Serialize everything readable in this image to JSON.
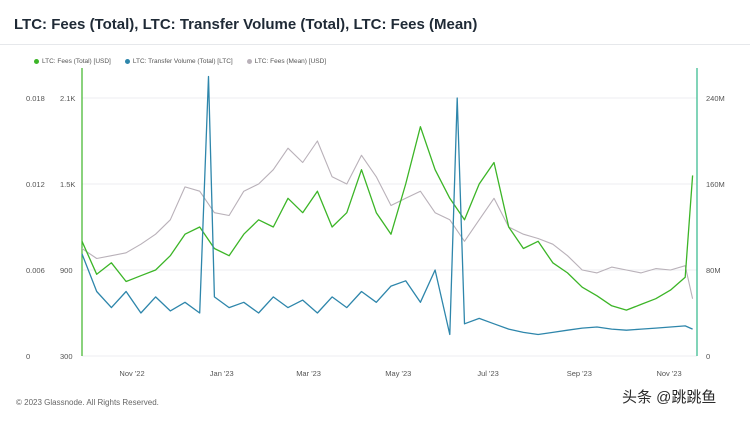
{
  "title": "LTC: Fees (Total), LTC: Transfer Volume (Total), LTC: Fees (Mean)",
  "footer": "© 2023 Glassnode. All Rights Reserved.",
  "watermark": "头条 @跳跳鱼",
  "colors": {
    "fees_total": "#3cb527",
    "transfer_volume": "#2e86ab",
    "fees_mean": "#b9b1b9",
    "axis_right": "#2eb88a"
  },
  "chart_data": {
    "type": "line",
    "x_tick_labels": [
      "Nov '22",
      "Jan '23",
      "Mar '23",
      "May '23",
      "Jul '23",
      "Sep '23",
      "Nov '23"
    ],
    "x_range": [
      "2022-09-28",
      "2023-11-20"
    ],
    "left_axis_1": {
      "ticks": [
        "0",
        "0.006",
        "0.012",
        "0.018"
      ],
      "range": [
        0,
        0.018
      ]
    },
    "left_axis_2": {
      "ticks": [
        "300",
        "900",
        "1.5K",
        "2.1K"
      ],
      "range": [
        300,
        2100
      ]
    },
    "right_axis": {
      "ticks": [
        "0",
        "80M",
        "160M",
        "240M"
      ],
      "range": [
        0,
        240000000
      ]
    },
    "grid": true,
    "legend_position": "top-left",
    "series": [
      {
        "name": "LTC: Fees (Total) [USD]",
        "axis": "left_axis_2",
        "points": [
          [
            "2022-09-28",
            1100
          ],
          [
            "2022-10-08",
            870
          ],
          [
            "2022-10-18",
            950
          ],
          [
            "2022-10-28",
            820
          ],
          [
            "2022-11-07",
            860
          ],
          [
            "2022-11-17",
            900
          ],
          [
            "2022-11-27",
            1000
          ],
          [
            "2022-12-07",
            1150
          ],
          [
            "2022-12-17",
            1200
          ],
          [
            "2022-12-27",
            1050
          ],
          [
            "2023-01-06",
            1000
          ],
          [
            "2023-01-16",
            1150
          ],
          [
            "2023-01-26",
            1250
          ],
          [
            "2023-02-05",
            1200
          ],
          [
            "2023-02-15",
            1400
          ],
          [
            "2023-02-25",
            1300
          ],
          [
            "2023-03-07",
            1450
          ],
          [
            "2023-03-17",
            1200
          ],
          [
            "2023-03-27",
            1300
          ],
          [
            "2023-04-06",
            1600
          ],
          [
            "2023-04-16",
            1300
          ],
          [
            "2023-04-26",
            1150
          ],
          [
            "2023-05-06",
            1500
          ],
          [
            "2023-05-16",
            1900
          ],
          [
            "2023-05-26",
            1600
          ],
          [
            "2023-06-05",
            1400
          ],
          [
            "2023-06-15",
            1250
          ],
          [
            "2023-06-25",
            1500
          ],
          [
            "2023-07-05",
            1650
          ],
          [
            "2023-07-15",
            1200
          ],
          [
            "2023-07-25",
            1050
          ],
          [
            "2023-08-04",
            1100
          ],
          [
            "2023-08-14",
            950
          ],
          [
            "2023-08-24",
            880
          ],
          [
            "2023-09-03",
            780
          ],
          [
            "2023-09-13",
            720
          ],
          [
            "2023-09-23",
            650
          ],
          [
            "2023-10-03",
            620
          ],
          [
            "2023-10-13",
            660
          ],
          [
            "2023-10-23",
            700
          ],
          [
            "2023-11-02",
            760
          ],
          [
            "2023-11-12",
            850
          ],
          [
            "2023-11-17",
            1560
          ]
        ]
      },
      {
        "name": "LTC: Transfer Volume (Total) [LTC]",
        "axis": "right_axis",
        "points": [
          [
            "2022-09-28",
            95000000
          ],
          [
            "2022-10-08",
            60000000
          ],
          [
            "2022-10-18",
            45000000
          ],
          [
            "2022-10-28",
            60000000
          ],
          [
            "2022-11-07",
            40000000
          ],
          [
            "2022-11-17",
            55000000
          ],
          [
            "2022-11-27",
            42000000
          ],
          [
            "2022-12-07",
            50000000
          ],
          [
            "2022-12-17",
            40000000
          ],
          [
            "2022-12-23",
            260000000
          ],
          [
            "2022-12-27",
            55000000
          ],
          [
            "2023-01-06",
            45000000
          ],
          [
            "2023-01-16",
            50000000
          ],
          [
            "2023-01-26",
            40000000
          ],
          [
            "2023-02-05",
            55000000
          ],
          [
            "2023-02-15",
            45000000
          ],
          [
            "2023-02-25",
            52000000
          ],
          [
            "2023-03-07",
            40000000
          ],
          [
            "2023-03-17",
            55000000
          ],
          [
            "2023-03-27",
            45000000
          ],
          [
            "2023-04-06",
            60000000
          ],
          [
            "2023-04-16",
            50000000
          ],
          [
            "2023-04-26",
            65000000
          ],
          [
            "2023-05-06",
            70000000
          ],
          [
            "2023-05-16",
            50000000
          ],
          [
            "2023-05-26",
            80000000
          ],
          [
            "2023-06-05",
            20000000
          ],
          [
            "2023-06-10",
            240000000
          ],
          [
            "2023-06-15",
            30000000
          ],
          [
            "2023-06-25",
            35000000
          ],
          [
            "2023-07-05",
            30000000
          ],
          [
            "2023-07-15",
            25000000
          ],
          [
            "2023-07-25",
            22000000
          ],
          [
            "2023-08-04",
            20000000
          ],
          [
            "2023-08-14",
            22000000
          ],
          [
            "2023-08-24",
            24000000
          ],
          [
            "2023-09-03",
            26000000
          ],
          [
            "2023-09-13",
            27000000
          ],
          [
            "2023-09-23",
            25000000
          ],
          [
            "2023-10-03",
            24000000
          ],
          [
            "2023-10-13",
            25000000
          ],
          [
            "2023-10-23",
            26000000
          ],
          [
            "2023-11-02",
            27000000
          ],
          [
            "2023-11-12",
            28000000
          ],
          [
            "2023-11-17",
            25000000
          ]
        ]
      },
      {
        "name": "LTC: Fees (Mean) [USD]",
        "axis": "left_axis_1",
        "points": [
          [
            "2022-09-28",
            0.0075
          ],
          [
            "2022-10-08",
            0.0068
          ],
          [
            "2022-10-18",
            0.007
          ],
          [
            "2022-10-28",
            0.0072
          ],
          [
            "2022-11-07",
            0.0078
          ],
          [
            "2022-11-17",
            0.0085
          ],
          [
            "2022-11-27",
            0.0095
          ],
          [
            "2022-12-07",
            0.0118
          ],
          [
            "2022-12-17",
            0.0115
          ],
          [
            "2022-12-27",
            0.01
          ],
          [
            "2023-01-06",
            0.0098
          ],
          [
            "2023-01-16",
            0.0115
          ],
          [
            "2023-01-26",
            0.012
          ],
          [
            "2023-02-05",
            0.013
          ],
          [
            "2023-02-15",
            0.0145
          ],
          [
            "2023-02-25",
            0.0135
          ],
          [
            "2023-03-07",
            0.015
          ],
          [
            "2023-03-17",
            0.0125
          ],
          [
            "2023-03-27",
            0.012
          ],
          [
            "2023-04-06",
            0.014
          ],
          [
            "2023-04-16",
            0.0125
          ],
          [
            "2023-04-26",
            0.0105
          ],
          [
            "2023-05-06",
            0.011
          ],
          [
            "2023-05-16",
            0.0115
          ],
          [
            "2023-05-26",
            0.01
          ],
          [
            "2023-06-05",
            0.0095
          ],
          [
            "2023-06-15",
            0.008
          ],
          [
            "2023-06-25",
            0.0095
          ],
          [
            "2023-07-05",
            0.011
          ],
          [
            "2023-07-15",
            0.009
          ],
          [
            "2023-07-25",
            0.0085
          ],
          [
            "2023-08-04",
            0.0082
          ],
          [
            "2023-08-14",
            0.0078
          ],
          [
            "2023-08-24",
            0.007
          ],
          [
            "2023-09-03",
            0.006
          ],
          [
            "2023-09-13",
            0.0058
          ],
          [
            "2023-09-23",
            0.0062
          ],
          [
            "2023-10-03",
            0.006
          ],
          [
            "2023-10-13",
            0.0058
          ],
          [
            "2023-10-23",
            0.0061
          ],
          [
            "2023-11-02",
            0.006
          ],
          [
            "2023-11-12",
            0.0063
          ],
          [
            "2023-11-17",
            0.004
          ]
        ]
      }
    ]
  }
}
